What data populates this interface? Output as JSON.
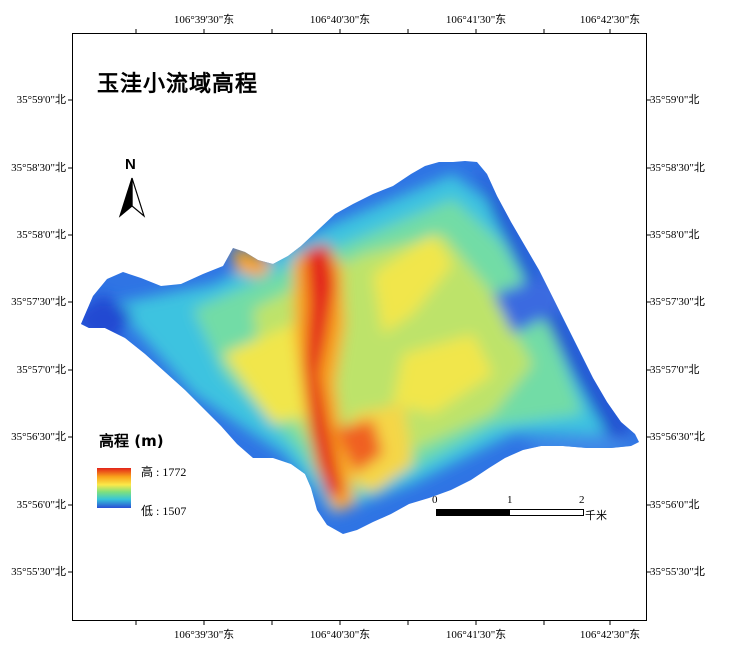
{
  "map": {
    "title": "玉洼小流域高程",
    "north_label": "N",
    "legend": {
      "title": "高程 (m)",
      "high_label": "高 : 1772",
      "low_label": "低 : 1507",
      "high": 1772,
      "low": 1507,
      "ramp_colors": [
        "#e3231a",
        "#f9a41b",
        "#fbe94a",
        "#7ee07e",
        "#38c6d8",
        "#2a4fd6"
      ]
    },
    "scale_bar": {
      "ticks": [
        "0",
        "1",
        "2"
      ],
      "unit": "千米"
    },
    "longitude_labels": [
      "106°39'30\"东",
      "106°40'30\"东",
      "106°41'30\"东",
      "106°42'30\"东"
    ],
    "latitude_labels": [
      "35°59'0\"北",
      "35°58'30\"北",
      "35°58'0\"北",
      "35°57'30\"北",
      "35°57'0\"北",
      "35°56'30\"北",
      "35°56'0\"北",
      "35°55'30\"北"
    ]
  }
}
